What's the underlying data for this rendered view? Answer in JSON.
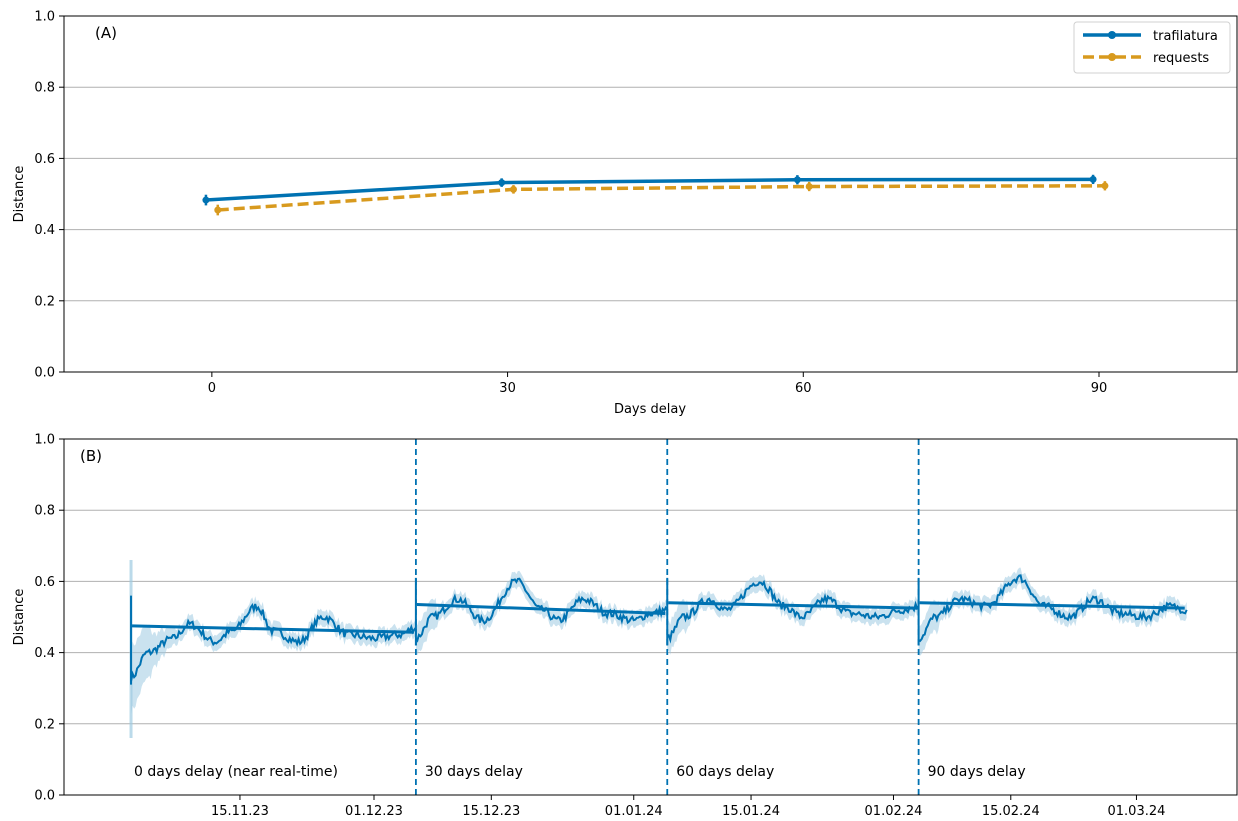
{
  "colors": {
    "trafilatura": "#0072b2",
    "requests": "#d89a1e",
    "band": "#9ecae1",
    "grid": "#b0b0b0"
  },
  "chart_data": [
    {
      "panel": "(A)",
      "type": "line",
      "xlabel": "Days delay",
      "ylabel": "Distance",
      "x": [
        0,
        30,
        60,
        90
      ],
      "xticks": [
        "0",
        "30",
        "60",
        "90"
      ],
      "xlim": [
        -15,
        104
      ],
      "ylim": [
        0.0,
        1.0
      ],
      "yticks": [
        "0.0",
        "0.2",
        "0.4",
        "0.6",
        "0.8",
        "1.0"
      ],
      "grid": "horizontal",
      "legend": "top-right",
      "series": [
        {
          "name": "trafilatura",
          "style": "solid",
          "values": [
            0.483,
            0.532,
            0.54,
            0.541
          ],
          "errors": [
            0.015,
            0.012,
            0.013,
            0.013
          ],
          "x_offset": -0.6
        },
        {
          "name": "requests",
          "style": "dashed",
          "values": [
            0.455,
            0.513,
            0.521,
            0.523
          ],
          "errors": [
            0.015,
            0.012,
            0.013,
            0.013
          ],
          "x_offset": 0.6
        }
      ]
    },
    {
      "panel": "(B)",
      "type": "line",
      "xlabel": "",
      "ylabel": "Distance",
      "xlim": [
        "2023-10-25",
        "2024-03-13"
      ],
      "xticks": [
        "15.11.23",
        "01.12.23",
        "15.12.23",
        "01.01.24",
        "15.01.24",
        "01.02.24",
        "15.02.24",
        "01.03.24"
      ],
      "xtick_dates": [
        "2023-11-15",
        "2023-12-01",
        "2023-12-15",
        "2024-01-01",
        "2024-01-15",
        "2024-02-01",
        "2024-02-15",
        "2024-03-01"
      ],
      "ylim": [
        0.0,
        1.0
      ],
      "yticks": [
        "0.0",
        "0.2",
        "0.4",
        "0.6",
        "0.8",
        "1.0"
      ],
      "grid": "horizontal",
      "periods": [
        {
          "label": "0 days delay (near real-time)",
          "start": "2023-11-02",
          "end": "2023-12-06",
          "trend": [
            0.475,
            0.457
          ]
        },
        {
          "label": "30 days delay",
          "start": "2023-12-06",
          "end": "2024-01-05",
          "trend": [
            0.535,
            0.51
          ]
        },
        {
          "label": "60 days delay",
          "start": "2024-01-05",
          "end": "2024-02-04",
          "trend": [
            0.54,
            0.525
          ]
        },
        {
          "label": "90 days delay",
          "start": "2024-02-04",
          "end": "2024-03-07",
          "trend": [
            0.54,
            0.525
          ]
        }
      ],
      "series_peaks": [
        [
          [
            "2023-11-02",
            0.33
          ],
          [
            "2023-11-04",
            0.4
          ],
          [
            "2023-11-07",
            0.44
          ],
          [
            "2023-11-09",
            0.48
          ],
          [
            "2023-11-12",
            0.43
          ],
          [
            "2023-11-14",
            0.46
          ],
          [
            "2023-11-17",
            0.53
          ],
          [
            "2023-11-19",
            0.46
          ],
          [
            "2023-11-22",
            0.43
          ],
          [
            "2023-11-25",
            0.5
          ],
          [
            "2023-11-28",
            0.45
          ],
          [
            "2023-12-01",
            0.44
          ],
          [
            "2023-12-04",
            0.45
          ],
          [
            "2023-12-06",
            0.47
          ]
        ],
        [
          [
            "2023-12-06",
            0.44
          ],
          [
            "2023-12-08",
            0.5
          ],
          [
            "2023-12-11",
            0.55
          ],
          [
            "2023-12-14",
            0.49
          ],
          [
            "2023-12-18",
            0.6
          ],
          [
            "2023-12-21",
            0.52
          ],
          [
            "2023-12-23",
            0.49
          ],
          [
            "2023-12-26",
            0.55
          ],
          [
            "2023-12-29",
            0.51
          ],
          [
            "2024-01-01",
            0.49
          ],
          [
            "2024-01-03",
            0.51
          ],
          [
            "2024-01-05",
            0.52
          ]
        ],
        [
          [
            "2024-01-05",
            0.44
          ],
          [
            "2024-01-07",
            0.5
          ],
          [
            "2024-01-10",
            0.55
          ],
          [
            "2024-01-12",
            0.52
          ],
          [
            "2024-01-16",
            0.6
          ],
          [
            "2024-01-19",
            0.53
          ],
          [
            "2024-01-21",
            0.5
          ],
          [
            "2024-01-24",
            0.55
          ],
          [
            "2024-01-27",
            0.51
          ],
          [
            "2024-01-30",
            0.5
          ],
          [
            "2024-02-02",
            0.52
          ],
          [
            "2024-02-04",
            0.53
          ]
        ],
        [
          [
            "2024-02-04",
            0.44
          ],
          [
            "2024-02-06",
            0.5
          ],
          [
            "2024-02-09",
            0.55
          ],
          [
            "2024-02-12",
            0.53
          ],
          [
            "2024-02-16",
            0.61
          ],
          [
            "2024-02-19",
            0.53
          ],
          [
            "2024-02-22",
            0.5
          ],
          [
            "2024-02-25",
            0.55
          ],
          [
            "2024-02-28",
            0.51
          ],
          [
            "2024-03-02",
            0.5
          ],
          [
            "2024-03-05",
            0.53
          ],
          [
            "2024-03-07",
            0.52
          ]
        ]
      ]
    }
  ]
}
